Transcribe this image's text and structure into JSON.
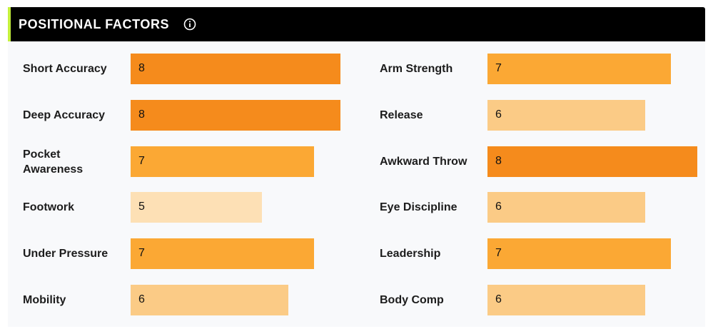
{
  "header": {
    "title": "POSITIONAL FACTORS",
    "accent_color": "#c4f03c",
    "info_icon": "info-circle-icon"
  },
  "scale_max": 8,
  "level_colors": {
    "8": "#f58b1c",
    "7": "#fba834",
    "6": "#fbcb86",
    "5": "#fde0b5"
  },
  "left_factors": [
    {
      "label": "Short Accuracy",
      "value": "8"
    },
    {
      "label": "Deep Accuracy",
      "value": "8"
    },
    {
      "label": "Pocket Awareness",
      "value": "7"
    },
    {
      "label": "Footwork",
      "value": "5"
    },
    {
      "label": "Under Pressure",
      "value": "7"
    },
    {
      "label": "Mobility",
      "value": "6"
    }
  ],
  "right_factors": [
    {
      "label": "Arm Strength",
      "value": "7"
    },
    {
      "label": "Release",
      "value": "6"
    },
    {
      "label": "Awkward Throw",
      "value": "8"
    },
    {
      "label": "Eye Discipline",
      "value": "6"
    },
    {
      "label": "Leadership",
      "value": "7"
    },
    {
      "label": "Body Comp",
      "value": "6"
    }
  ]
}
